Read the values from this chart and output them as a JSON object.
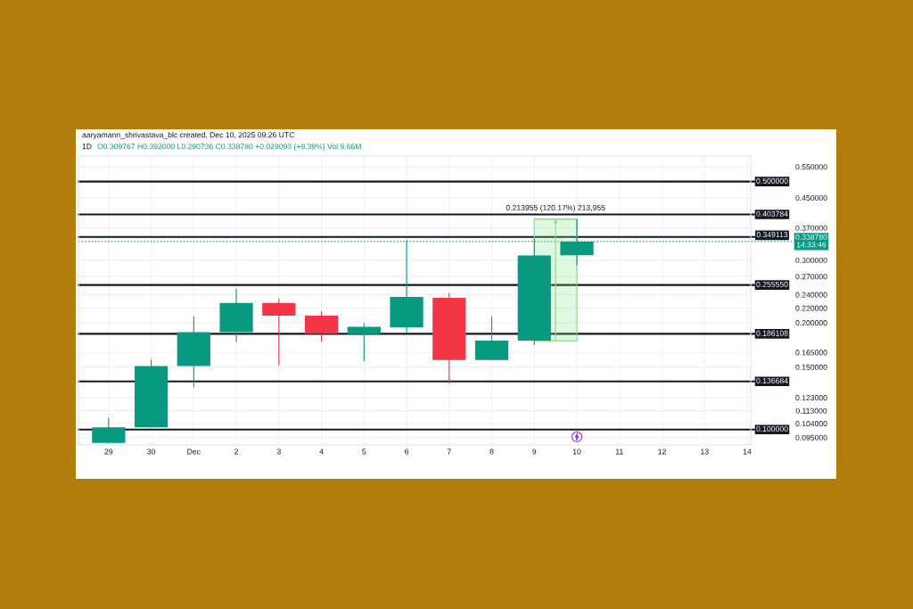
{
  "chart_data": {
    "type": "candlestick",
    "title": "aaryamann_shrivastava_blc created, Dec 10, 2025 09:26 UTC",
    "subtitle": "1D",
    "annotations": [
      "O0.309767 H0.392000 L0.290736 C0.338780 +0.029093 (+9.39%) Vol 9.66M",
      {
        "text": "0.213955 (120.17%) 213,955",
        "x": "2025-12-09T12:00",
        "y": 0.392
      }
    ],
    "x": [
      "2025-11-29",
      "2025-11-30",
      "2025-12-01",
      "2025-12-02",
      "2025-12-03",
      "2025-12-04",
      "2025-12-05",
      "2025-12-06",
      "2025-12-07",
      "2025-12-08",
      "2025-12-09",
      "2025-12-10"
    ],
    "ohlc": [
      [
        0.0917,
        0.108,
        0.0917,
        0.1015
      ],
      [
        0.1015,
        0.1576,
        0.1015,
        0.151
      ],
      [
        0.151,
        0.2084,
        0.1319,
        0.1882
      ],
      [
        0.1882,
        0.2495,
        0.1762,
        0.2274
      ],
      [
        0.2274,
        0.2337,
        0.1516,
        0.2093
      ],
      [
        0.2093,
        0.2155,
        0.177,
        0.1864
      ],
      [
        0.1857,
        0.1993,
        0.156,
        0.1948
      ],
      [
        0.1941,
        0.3425,
        0.1867,
        0.2364
      ],
      [
        0.235,
        0.2428,
        0.135,
        0.157
      ],
      [
        0.157,
        0.2084,
        0.157,
        0.178
      ],
      [
        0.178,
        0.3457,
        0.1729,
        0.3097
      ],
      [
        0.309767,
        0.392,
        0.290736,
        0.33878
      ]
    ],
    "colors": [
      "#089981",
      "#089981",
      "#089981",
      "#089981",
      "#f23645",
      "#f23645",
      "#089981",
      "#089981",
      "#f23645",
      "#089981",
      "#089981",
      "#089981"
    ],
    "series": [
      {
        "type": "line",
        "x": [
          "2025-12-09",
          "2025-12-10"
        ],
        "values": [
          0.392,
          0.392
        ],
        "lower": [
          0.178,
          0.178
        ],
        "upper": [
          0.392,
          0.392
        ],
        "color": "#7ee37e"
      }
    ],
    "ref_lines": [
      {
        "axis": "y",
        "value": 0.5,
        "label": "0.500000",
        "color": "#131722"
      },
      {
        "axis": "y",
        "value": 0.403784,
        "label": "0.403784",
        "color": "#131722"
      },
      {
        "axis": "y",
        "value": 0.349113,
        "label": "0.349113",
        "color": "#131722"
      },
      {
        "axis": "y",
        "value": 0.33878,
        "label": "0.338780\n14:33:46",
        "color": "#089981",
        "line_style": "dotted"
      },
      {
        "axis": "y",
        "value": 0.25555,
        "label": "0.255550",
        "color": "#131722"
      },
      {
        "axis": "y",
        "value": 0.186108,
        "label": "0.186108",
        "color": "#131722"
      },
      {
        "axis": "y",
        "value": 0.136684,
        "label": "0.136684",
        "color": "#131722"
      },
      {
        "axis": "y",
        "value": 0.1,
        "label": "0.100000",
        "color": "#131722"
      }
    ],
    "log": true,
    "ylim": [
      0.0905,
      0.59
    ],
    "yticks": [
      {
        "value": 0.55,
        "label": "0.550000"
      },
      {
        "value": 0.45,
        "label": "0.450000"
      },
      {
        "value": 0.37,
        "label": "0.370000"
      },
      {
        "value": 0.3,
        "label": "0.300000"
      },
      {
        "value": 0.27,
        "label": "0.270000"
      },
      {
        "value": 0.24,
        "label": "0.240000"
      },
      {
        "value": 0.22,
        "label": "0.220000"
      },
      {
        "value": 0.2,
        "label": "0.200000"
      },
      {
        "value": 0.165,
        "label": "0.165000"
      },
      {
        "value": 0.15,
        "label": "0.150000"
      },
      {
        "value": 0.123,
        "label": "0.123000"
      },
      {
        "value": 0.113,
        "label": "0.113000"
      },
      {
        "value": 0.104,
        "label": "0.104000"
      },
      {
        "value": 0.095,
        "label": "0.095000"
      }
    ],
    "xlim": [
      "2025-11-28T07:00",
      "2025-12-14T02:00"
    ],
    "xticks": [
      {
        "value": "2025-11-29",
        "label": "29"
      },
      {
        "value": "2025-11-30",
        "label": "30"
      },
      {
        "value": "2025-12-01",
        "label": "Dec"
      },
      {
        "value": "2025-12-02",
        "label": "2"
      },
      {
        "value": "2025-12-03",
        "label": "3"
      },
      {
        "value": "2025-12-04",
        "label": "4"
      },
      {
        "value": "2025-12-05",
        "label": "5"
      },
      {
        "value": "2025-12-06",
        "label": "6"
      },
      {
        "value": "2025-12-07",
        "label": "7"
      },
      {
        "value": "2025-12-08",
        "label": "8"
      },
      {
        "value": "2025-12-09",
        "label": "9"
      },
      {
        "value": "2025-12-10",
        "label": "10"
      },
      {
        "value": "2025-12-11",
        "label": "11"
      },
      {
        "value": "2025-12-12",
        "label": "12"
      },
      {
        "value": "2025-12-13",
        "label": "13"
      },
      {
        "value": "2025-12-14",
        "label": "14"
      }
    ],
    "grid": true
  }
}
